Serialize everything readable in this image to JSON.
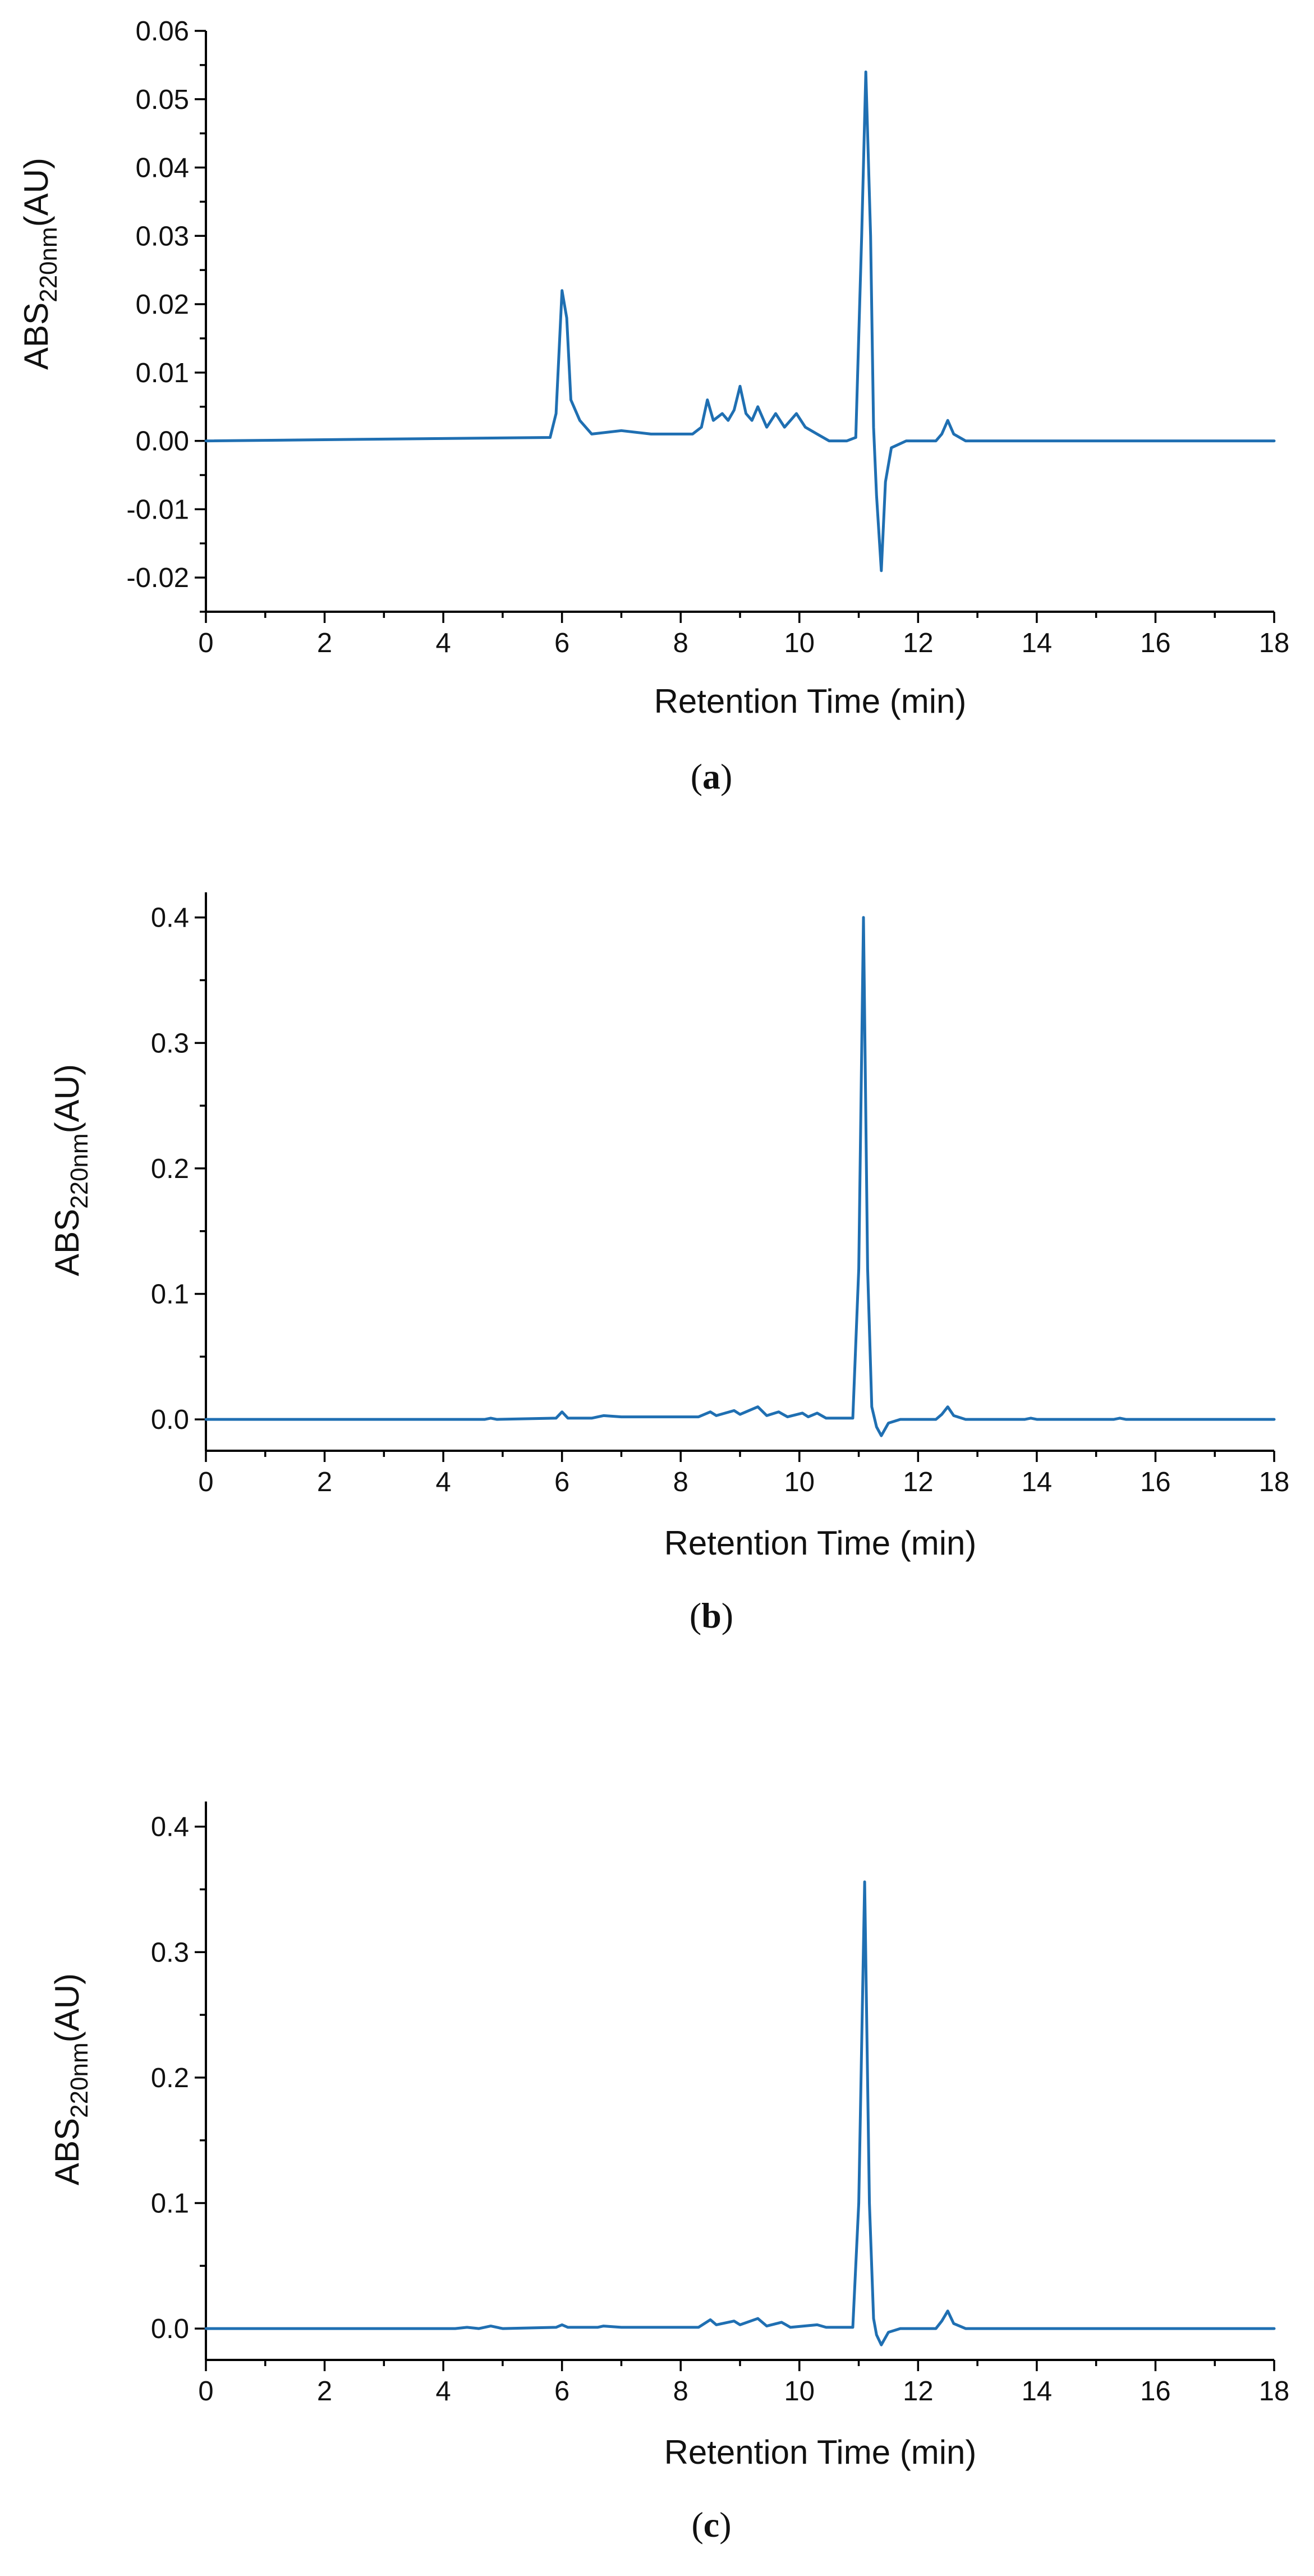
{
  "chart_data": [
    {
      "panel": "a",
      "type": "line",
      "caption": {
        "open": "(",
        "letter": "a",
        "close": ")"
      },
      "xlabel": "Retention Time (min)",
      "ylabel": {
        "main": "ABS",
        "sub": "220nm",
        "unit": "(AU)"
      },
      "xlim": [
        0,
        18
      ],
      "ylim": [
        -0.025,
        0.06
      ],
      "xticks": [
        0,
        2,
        4,
        6,
        8,
        10,
        12,
        14,
        16,
        18
      ],
      "xtick_labels": [
        "0",
        "2",
        "4",
        "6",
        "8",
        "10",
        "12",
        "14",
        "16",
        "18"
      ],
      "yticks": [
        -0.02,
        -0.01,
        0.0,
        0.01,
        0.02,
        0.03,
        0.04,
        0.05,
        0.06
      ],
      "ytick_labels": [
        "-0.02",
        "-0.01",
        "0.00",
        "0.01",
        "0.02",
        "0.03",
        "0.04",
        "0.05",
        "0.06"
      ],
      "series": [
        {
          "name": "chromatogram-a",
          "color": "#1f6fb2",
          "points": [
            [
              0,
              0.0
            ],
            [
              5.8,
              0.0005
            ],
            [
              5.9,
              0.004
            ],
            [
              6.0,
              0.022
            ],
            [
              6.08,
              0.018
            ],
            [
              6.15,
              0.006
            ],
            [
              6.3,
              0.003
            ],
            [
              6.5,
              0.001
            ],
            [
              7.0,
              0.0015
            ],
            [
              7.5,
              0.001
            ],
            [
              8.2,
              0.001
            ],
            [
              8.35,
              0.002
            ],
            [
              8.45,
              0.006
            ],
            [
              8.55,
              0.003
            ],
            [
              8.7,
              0.004
            ],
            [
              8.8,
              0.003
            ],
            [
              8.9,
              0.0045
            ],
            [
              9.0,
              0.008
            ],
            [
              9.1,
              0.004
            ],
            [
              9.2,
              0.003
            ],
            [
              9.3,
              0.005
            ],
            [
              9.45,
              0.002
            ],
            [
              9.6,
              0.004
            ],
            [
              9.75,
              0.002
            ],
            [
              9.85,
              0.003
            ],
            [
              9.95,
              0.004
            ],
            [
              10.1,
              0.002
            ],
            [
              10.3,
              0.001
            ],
            [
              10.5,
              0.0
            ],
            [
              10.8,
              0.0
            ],
            [
              10.95,
              0.0005
            ],
            [
              11.05,
              0.03
            ],
            [
              11.12,
              0.054
            ],
            [
              11.2,
              0.03
            ],
            [
              11.25,
              0.002
            ],
            [
              11.3,
              -0.008
            ],
            [
              11.38,
              -0.019
            ],
            [
              11.45,
              -0.006
            ],
            [
              11.55,
              -0.001
            ],
            [
              11.8,
              0.0
            ],
            [
              12.3,
              0.0
            ],
            [
              12.4,
              0.001
            ],
            [
              12.5,
              0.003
            ],
            [
              12.6,
              0.001
            ],
            [
              12.8,
              0.0
            ],
            [
              18,
              0.0
            ]
          ]
        }
      ]
    },
    {
      "panel": "b",
      "type": "line",
      "caption": {
        "open": "(",
        "letter": "b",
        "close": ")"
      },
      "xlabel": "Retention Time (min)",
      "ylabel": {
        "main": "ABS",
        "sub": "220nm",
        "unit": "(AU)"
      },
      "xlim": [
        0,
        18
      ],
      "ylim": [
        -0.025,
        0.42
      ],
      "xticks": [
        0,
        2,
        4,
        6,
        8,
        10,
        12,
        14,
        16,
        18
      ],
      "xtick_labels": [
        "0",
        "2",
        "4",
        "6",
        "8",
        "10",
        "12",
        "14",
        "16",
        "18"
      ],
      "yticks": [
        0.0,
        0.1,
        0.2,
        0.3,
        0.4
      ],
      "ytick_labels": [
        "0.0",
        "0.1",
        "0.2",
        "0.3",
        "0.4"
      ],
      "series": [
        {
          "name": "chromatogram-b",
          "color": "#1f6fb2",
          "points": [
            [
              0,
              0.0
            ],
            [
              4.7,
              0.0
            ],
            [
              4.8,
              0.001
            ],
            [
              4.9,
              0.0
            ],
            [
              5.9,
              0.001
            ],
            [
              6.0,
              0.006
            ],
            [
              6.1,
              0.001
            ],
            [
              6.5,
              0.001
            ],
            [
              6.7,
              0.003
            ],
            [
              7.0,
              0.002
            ],
            [
              8.3,
              0.002
            ],
            [
              8.5,
              0.006
            ],
            [
              8.6,
              0.003
            ],
            [
              8.9,
              0.007
            ],
            [
              9.0,
              0.004
            ],
            [
              9.3,
              0.01
            ],
            [
              9.45,
              0.003
            ],
            [
              9.65,
              0.006
            ],
            [
              9.8,
              0.002
            ],
            [
              10.05,
              0.005
            ],
            [
              10.15,
              0.002
            ],
            [
              10.3,
              0.005
            ],
            [
              10.45,
              0.001
            ],
            [
              10.9,
              0.001
            ],
            [
              11.0,
              0.12
            ],
            [
              11.08,
              0.4
            ],
            [
              11.15,
              0.12
            ],
            [
              11.22,
              0.01
            ],
            [
              11.3,
              -0.006
            ],
            [
              11.38,
              -0.013
            ],
            [
              11.5,
              -0.003
            ],
            [
              11.7,
              0.0
            ],
            [
              12.3,
              0.0
            ],
            [
              12.4,
              0.004
            ],
            [
              12.5,
              0.01
            ],
            [
              12.6,
              0.003
            ],
            [
              12.8,
              0.0
            ],
            [
              13.8,
              0.0
            ],
            [
              13.9,
              0.001
            ],
            [
              14.0,
              0.0
            ],
            [
              15.3,
              0.0
            ],
            [
              15.4,
              0.001
            ],
            [
              15.5,
              0.0
            ],
            [
              18,
              0.0
            ]
          ]
        }
      ]
    },
    {
      "panel": "c",
      "type": "line",
      "caption": {
        "open": "(",
        "letter": "c",
        "close": ")"
      },
      "xlabel": "Retention Time (min)",
      "ylabel": {
        "main": "ABS",
        "sub": "220nm",
        "unit": "(AU)"
      },
      "xlim": [
        0,
        18
      ],
      "ylim": [
        -0.025,
        0.42
      ],
      "xticks": [
        0,
        2,
        4,
        6,
        8,
        10,
        12,
        14,
        16,
        18
      ],
      "xtick_labels": [
        "0",
        "2",
        "4",
        "6",
        "8",
        "10",
        "12",
        "14",
        "16",
        "18"
      ],
      "yticks": [
        0.0,
        0.1,
        0.2,
        0.3,
        0.4
      ],
      "ytick_labels": [
        "0.0",
        "0.1",
        "0.2",
        "0.3",
        "0.4"
      ],
      "series": [
        {
          "name": "chromatogram-c",
          "color": "#1f6fb2",
          "points": [
            [
              0,
              0.0
            ],
            [
              4.2,
              0.0
            ],
            [
              4.4,
              0.001
            ],
            [
              4.6,
              0.0
            ],
            [
              4.8,
              0.002
            ],
            [
              5.0,
              0.0
            ],
            [
              5.9,
              0.001
            ],
            [
              6.0,
              0.003
            ],
            [
              6.1,
              0.001
            ],
            [
              6.6,
              0.001
            ],
            [
              6.7,
              0.002
            ],
            [
              7.0,
              0.001
            ],
            [
              8.3,
              0.001
            ],
            [
              8.5,
              0.007
            ],
            [
              8.6,
              0.003
            ],
            [
              8.9,
              0.006
            ],
            [
              9.0,
              0.003
            ],
            [
              9.3,
              0.008
            ],
            [
              9.45,
              0.002
            ],
            [
              9.7,
              0.005
            ],
            [
              9.85,
              0.001
            ],
            [
              10.3,
              0.003
            ],
            [
              10.45,
              0.001
            ],
            [
              10.9,
              0.001
            ],
            [
              11.0,
              0.1
            ],
            [
              11.1,
              0.356
            ],
            [
              11.18,
              0.1
            ],
            [
              11.25,
              0.008
            ],
            [
              11.3,
              -0.005
            ],
            [
              11.38,
              -0.013
            ],
            [
              11.5,
              -0.003
            ],
            [
              11.7,
              0.0
            ],
            [
              12.3,
              0.0
            ],
            [
              12.4,
              0.006
            ],
            [
              12.5,
              0.014
            ],
            [
              12.6,
              0.004
            ],
            [
              12.8,
              0.0
            ],
            [
              18,
              0.0
            ]
          ]
        }
      ]
    }
  ]
}
